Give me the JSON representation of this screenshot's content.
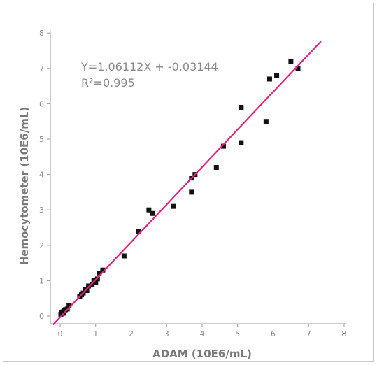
{
  "chart_data": {
    "type": "scatter",
    "xlabel": "ADAM (10E6/mL)",
    "ylabel": "Hemocytometer (10E6/mL)",
    "xlim": [
      0,
      8
    ],
    "ylim": [
      0,
      8
    ],
    "xticks": [
      "0",
      "1",
      "2",
      "3",
      "4",
      "5",
      "6",
      "7",
      "8"
    ],
    "yticks": [
      "0",
      "1",
      "2",
      "3",
      "4",
      "5",
      "6",
      "7",
      "8"
    ],
    "grid": false,
    "annotations": {
      "equation": "Y=1.06112X + -0.03144",
      "r_squared": "R²=0.995"
    },
    "series": [
      {
        "marker": "square",
        "color": "#111111",
        "points": [
          [
            0.02,
            0.05
          ],
          [
            0.05,
            0.1
          ],
          [
            0.08,
            0.12
          ],
          [
            0.1,
            0.08
          ],
          [
            0.12,
            0.15
          ],
          [
            0.15,
            0.18
          ],
          [
            0.2,
            0.2
          ],
          [
            0.25,
            0.3
          ],
          [
            0.55,
            0.55
          ],
          [
            0.6,
            0.6
          ],
          [
            0.65,
            0.65
          ],
          [
            0.7,
            0.75
          ],
          [
            0.75,
            0.72
          ],
          [
            0.8,
            0.85
          ],
          [
            0.9,
            0.9
          ],
          [
            0.95,
            1.0
          ],
          [
            1.0,
            0.95
          ],
          [
            1.05,
            1.05
          ],
          [
            1.1,
            1.2
          ],
          [
            1.2,
            1.3
          ],
          [
            1.8,
            1.7
          ],
          [
            2.2,
            2.4
          ],
          [
            2.5,
            3.0
          ],
          [
            2.6,
            2.9
          ],
          [
            3.2,
            3.1
          ],
          [
            3.7,
            3.5
          ],
          [
            3.7,
            3.9
          ],
          [
            3.8,
            4.0
          ],
          [
            4.4,
            4.2
          ],
          [
            4.6,
            4.8
          ],
          [
            5.1,
            4.9
          ],
          [
            5.1,
            5.9
          ],
          [
            5.8,
            5.5
          ],
          [
            5.9,
            6.7
          ],
          [
            6.1,
            6.8
          ],
          [
            6.5,
            7.2
          ],
          [
            6.7,
            7.0
          ]
        ]
      }
    ],
    "fit_line": {
      "slope": 1.06112,
      "intercept": -0.03144,
      "x_range": [
        -0.2,
        7.35
      ],
      "color": "#e0237f"
    }
  }
}
